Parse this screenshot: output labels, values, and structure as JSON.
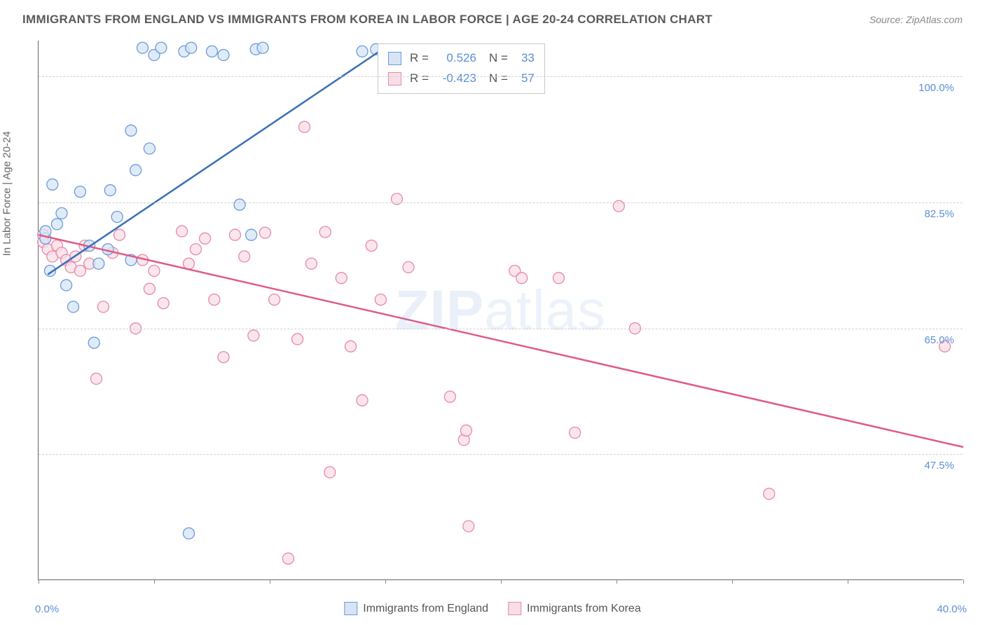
{
  "title": "IMMIGRANTS FROM ENGLAND VS IMMIGRANTS FROM KOREA IN LABOR FORCE | AGE 20-24 CORRELATION CHART",
  "source": "Source: ZipAtlas.com",
  "watermark_bold": "ZIP",
  "watermark_thin": "atlas",
  "y_axis_label": "In Labor Force | Age 20-24",
  "x_min_label": "0.0%",
  "x_max_label": "40.0%",
  "chart": {
    "type": "scatter-correlation",
    "x_domain": [
      0,
      40
    ],
    "y_domain": [
      30,
      105
    ],
    "y_ticks": [
      47.5,
      65.0,
      82.5,
      100.0
    ],
    "y_tick_labels": [
      "47.5%",
      "65.0%",
      "82.5%",
      "100.0%"
    ],
    "x_ticks": [
      0,
      5,
      10,
      15,
      20,
      25,
      30,
      35,
      40
    ],
    "background_color": "#ffffff",
    "grid_color": "#d0d0d0",
    "axis_color": "#666666",
    "tick_label_color": "#5b8fd6",
    "marker_radius": 8,
    "marker_stroke_width": 1.3,
    "line_width": 2.5,
    "series": [
      {
        "name": "Immigrants from England",
        "fill": "#d6e4f5",
        "stroke": "#6a9bd8",
        "line_color": "#3a6fb7",
        "R": "0.526",
        "N": "33",
        "trend": {
          "x1": 0.4,
          "y1": 72.5,
          "x2": 15.2,
          "y2": 104.5
        },
        "points": [
          [
            0.3,
            77.5
          ],
          [
            0.3,
            78.5
          ],
          [
            0.8,
            79.5
          ],
          [
            0.6,
            85.0
          ],
          [
            1.0,
            81.0
          ],
          [
            1.2,
            71.0
          ],
          [
            0.5,
            73.0
          ],
          [
            1.5,
            68.0
          ],
          [
            1.8,
            84.0
          ],
          [
            2.6,
            74.0
          ],
          [
            2.4,
            63.0
          ],
          [
            3.4,
            80.5
          ],
          [
            4.2,
            87.0
          ],
          [
            4.0,
            92.5
          ],
          [
            4.8,
            90.0
          ],
          [
            5.0,
            103.0
          ],
          [
            5.3,
            104.0
          ],
          [
            6.3,
            103.5
          ],
          [
            6.6,
            104.0
          ],
          [
            7.5,
            103.5
          ],
          [
            8.0,
            103.0
          ],
          [
            9.4,
            103.8
          ],
          [
            9.7,
            104.0
          ],
          [
            8.7,
            82.2
          ],
          [
            9.2,
            78.0
          ],
          [
            4.0,
            74.5
          ],
          [
            3.1,
            84.2
          ],
          [
            4.5,
            104.0
          ],
          [
            3.0,
            76.0
          ],
          [
            2.2,
            76.5
          ],
          [
            6.5,
            36.5
          ],
          [
            14.0,
            103.5
          ],
          [
            14.6,
            103.8
          ]
        ]
      },
      {
        "name": "Immigrants from Korea",
        "fill": "#f8dee6",
        "stroke": "#e68aa7",
        "line_color": "#e05a85",
        "R": "-0.423",
        "N": "57",
        "trend": {
          "x1": 0.0,
          "y1": 78.0,
          "x2": 40.0,
          "y2": 48.5
        },
        "points": [
          [
            0.2,
            78.0
          ],
          [
            0.2,
            77.0
          ],
          [
            0.4,
            76.0
          ],
          [
            0.6,
            75.0
          ],
          [
            0.8,
            76.5
          ],
          [
            1.0,
            75.5
          ],
          [
            1.2,
            74.5
          ],
          [
            1.4,
            73.5
          ],
          [
            1.6,
            75.0
          ],
          [
            1.8,
            73.0
          ],
          [
            2.0,
            76.5
          ],
          [
            2.2,
            74.0
          ],
          [
            2.5,
            58.0
          ],
          [
            2.8,
            68.0
          ],
          [
            3.2,
            75.5
          ],
          [
            3.5,
            78.0
          ],
          [
            4.2,
            65.0
          ],
          [
            4.5,
            74.5
          ],
          [
            4.8,
            70.5
          ],
          [
            5.0,
            73.0
          ],
          [
            5.4,
            68.5
          ],
          [
            6.2,
            78.5
          ],
          [
            6.5,
            74.0
          ],
          [
            6.8,
            76.0
          ],
          [
            7.2,
            77.5
          ],
          [
            7.6,
            69.0
          ],
          [
            8.0,
            61.0
          ],
          [
            8.5,
            78.0
          ],
          [
            8.9,
            75.0
          ],
          [
            9.3,
            64.0
          ],
          [
            9.8,
            78.3
          ],
          [
            10.2,
            69.0
          ],
          [
            10.8,
            33.0
          ],
          [
            11.2,
            63.5
          ],
          [
            11.5,
            93.0
          ],
          [
            11.8,
            74.0
          ],
          [
            12.4,
            78.4
          ],
          [
            12.6,
            45.0
          ],
          [
            13.1,
            72.0
          ],
          [
            13.5,
            62.5
          ],
          [
            14.0,
            55.0
          ],
          [
            14.4,
            76.5
          ],
          [
            14.8,
            69.0
          ],
          [
            15.5,
            83.0
          ],
          [
            16.0,
            73.5
          ],
          [
            17.8,
            55.5
          ],
          [
            18.4,
            49.5
          ],
          [
            18.5,
            50.8
          ],
          [
            18.6,
            37.5
          ],
          [
            20.6,
            73.0
          ],
          [
            20.9,
            72.0
          ],
          [
            22.5,
            72.0
          ],
          [
            23.2,
            50.5
          ],
          [
            25.1,
            82.0
          ],
          [
            25.8,
            65.0
          ],
          [
            31.6,
            42.0
          ],
          [
            39.2,
            62.5
          ]
        ]
      }
    ]
  },
  "corr_box": {
    "r_label": "R =",
    "n_label": "N ="
  },
  "legend": {
    "label_a": "Immigrants from England",
    "label_b": "Immigrants from Korea"
  }
}
